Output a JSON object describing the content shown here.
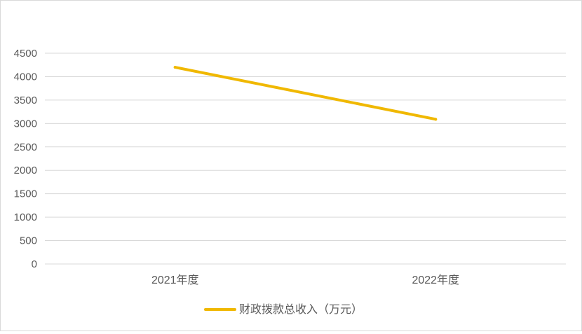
{
  "chart_data": {
    "type": "line",
    "categories": [
      "2021年度",
      "2022年度"
    ],
    "series": [
      {
        "name": "财政拨款总收入（万元）",
        "values": [
          4200,
          3090
        ],
        "color": "#F0B800"
      }
    ],
    "yticks": [
      0,
      500,
      1000,
      1500,
      2000,
      2500,
      3000,
      3500,
      4000,
      4500
    ],
    "ylim": [
      0,
      4500
    ],
    "grid": true,
    "legend_position": "bottom",
    "gridline_color": "#d9d9d9",
    "axis_label_color": "#595959"
  }
}
